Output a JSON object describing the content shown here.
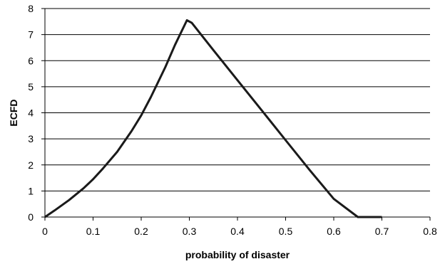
{
  "chart_data": {
    "type": "line",
    "title": "",
    "xlabel": "probability of disaster",
    "ylabel": "ECFD",
    "xlim": [
      0,
      0.8
    ],
    "ylim": [
      0,
      8
    ],
    "xticks": [
      0,
      0.1,
      0.2,
      0.3,
      0.4,
      0.5,
      0.6,
      0.7,
      0.8
    ],
    "yticks": [
      0,
      1,
      2,
      3,
      4,
      5,
      6,
      7,
      8
    ],
    "xtick_labels": [
      "0",
      "0.1",
      "0.2",
      "0.3",
      "0.4",
      "0.5",
      "0.6",
      "0.7",
      "0.8"
    ],
    "ytick_labels": [
      "0",
      "1",
      "2",
      "3",
      "4",
      "5",
      "6",
      "7",
      "8"
    ],
    "grid": "horizontal",
    "legend": "none",
    "series": [
      {
        "x": [
          0,
          0.02,
          0.05,
          0.08,
          0.1,
          0.12,
          0.15,
          0.18,
          0.2,
          0.22,
          0.25,
          0.27,
          0.295,
          0.305,
          0.35,
          0.4,
          0.45,
          0.5,
          0.55,
          0.6,
          0.65,
          0.7
        ],
        "y": [
          0,
          0.25,
          0.65,
          1.1,
          1.45,
          1.85,
          2.5,
          3.3,
          3.9,
          4.6,
          5.75,
          6.6,
          7.55,
          7.45,
          6.4,
          5.25,
          4.1,
          2.95,
          1.8,
          0.7,
          0,
          0
        ]
      }
    ],
    "colors": {
      "line": "#1a1a1a",
      "grid": "#000000",
      "axis": "#000000",
      "background": "#ffffff"
    }
  }
}
